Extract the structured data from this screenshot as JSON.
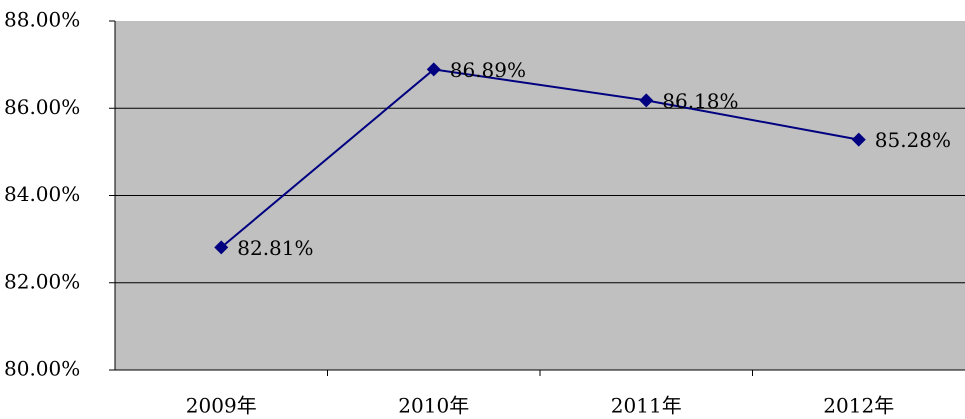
{
  "chart_data": {
    "type": "line",
    "categories": [
      "2009年",
      "2010年",
      "2011年",
      "2012年"
    ],
    "series": [
      {
        "color": "#000080",
        "values": [
          82.81,
          86.89,
          86.18,
          85.28
        ],
        "value_labels": [
          "82.81%",
          "86.89%",
          "86.18%",
          "85.28%"
        ]
      }
    ],
    "ylim": [
      80,
      88
    ],
    "yticks": [
      {
        "value": 80,
        "label": "80.00%"
      },
      {
        "value": 82,
        "label": "82.00%"
      },
      {
        "value": 84,
        "label": "84.00%"
      },
      {
        "value": 86,
        "label": "86.00%"
      },
      {
        "value": 88,
        "label": "88.00%"
      }
    ],
    "grid": true
  }
}
